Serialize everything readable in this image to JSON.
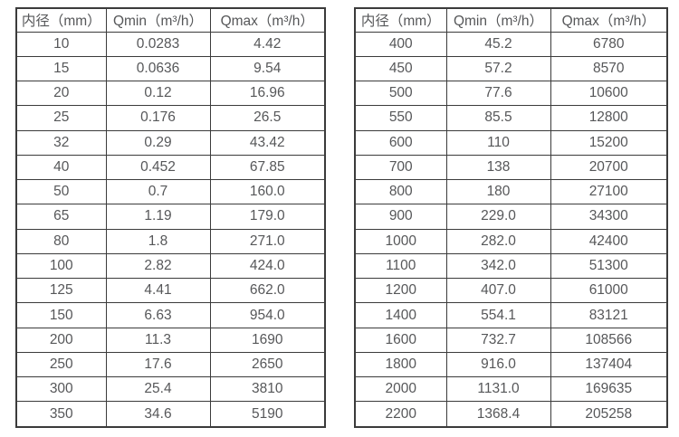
{
  "page": {
    "background": "#ffffff",
    "border_color": "#3b3b3b",
    "text_color": "#565759"
  },
  "left_table": {
    "headers": [
      "内径（mm）",
      "Qmin（m³/h）",
      "Qmax（m³/h）"
    ],
    "rows": [
      [
        "10",
        "0.0283",
        "4.42"
      ],
      [
        "15",
        "0.0636",
        "9.54"
      ],
      [
        "20",
        "0.12",
        "16.96"
      ],
      [
        "25",
        "0.176",
        "26.5"
      ],
      [
        "32",
        "0.29",
        "43.42"
      ],
      [
        "40",
        "0.452",
        "67.85"
      ],
      [
        "50",
        "0.7",
        "160.0"
      ],
      [
        "65",
        "1.19",
        "179.0"
      ],
      [
        "80",
        "1.8",
        "271.0"
      ],
      [
        "100",
        "2.82",
        "424.0"
      ],
      [
        "125",
        "4.41",
        "662.0"
      ],
      [
        "150",
        "6.63",
        "954.0"
      ],
      [
        "200",
        "11.3",
        "1690"
      ],
      [
        "250",
        "17.6",
        "2650"
      ],
      [
        "300",
        "25.4",
        "3810"
      ],
      [
        "350",
        "34.6",
        "5190"
      ]
    ]
  },
  "right_table": {
    "headers": [
      "内径（mm）",
      "Qmin（m³/h）",
      "Qmax（m³/h）"
    ],
    "rows": [
      [
        "400",
        "45.2",
        "6780"
      ],
      [
        "450",
        "57.2",
        "8570"
      ],
      [
        "500",
        "77.6",
        "10600"
      ],
      [
        "550",
        "85.5",
        "12800"
      ],
      [
        "600",
        "110",
        "15200"
      ],
      [
        "700",
        "138",
        "20700"
      ],
      [
        "800",
        "180",
        "27100"
      ],
      [
        "900",
        "229.0",
        "34300"
      ],
      [
        "1000",
        "282.0",
        "42400"
      ],
      [
        "1100",
        "342.0",
        "51300"
      ],
      [
        "1200",
        "407.0",
        "61000"
      ],
      [
        "1400",
        "554.1",
        "83121"
      ],
      [
        "1600",
        "732.7",
        "108566"
      ],
      [
        "1800",
        "916.0",
        "137404"
      ],
      [
        "2000",
        "1131.0",
        "169635"
      ],
      [
        "2200",
        "1368.4",
        "205258"
      ]
    ]
  }
}
